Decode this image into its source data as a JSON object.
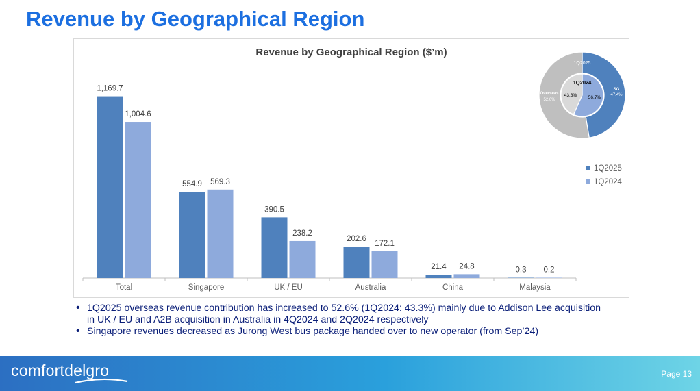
{
  "page": {
    "title": "Revenue by Geographical Region",
    "page_label": "Page 13"
  },
  "brand": {
    "logo_text": "comfortdelgro"
  },
  "bullets": [
    "1Q2025 overseas revenue contribution has increased to 52.6% (1Q2024: 43.3%) mainly due to Addison Lee acquisition in UK / EU and A2B acquisition in Australia in 4Q2024 and 2Q2024 respectively",
    "Singapore revenues decreased as Jurong West bus package handed over to new operator (from Sep’24)"
  ],
  "chart_data": [
    {
      "type": "bar",
      "title": "Revenue by Geographical Region ($’m)",
      "categories": [
        "Total",
        "Singapore",
        "UK / EU",
        "Australia",
        "China",
        "Malaysia"
      ],
      "series": [
        {
          "name": "1Q2025",
          "color": "#4f81bd",
          "values": [
            1169.7,
            554.9,
            390.5,
            202.6,
            21.4,
            0.3
          ],
          "labels": [
            "1,169.7",
            "554.9",
            "390.5",
            "202.6",
            "21.4",
            "0.3"
          ]
        },
        {
          "name": "1Q2024",
          "color": "#8eaadc",
          "values": [
            1004.6,
            569.3,
            238.2,
            172.1,
            24.8,
            0.2
          ],
          "labels": [
            "1,004.6",
            "569.3",
            "238.2",
            "172.1",
            "24.8",
            "0.2"
          ]
        }
      ],
      "ylim": [
        0,
        1300
      ],
      "grid": false,
      "legend": "right"
    },
    {
      "type": "pie",
      "variant": "nested-donut",
      "outer_ring": {
        "label": "1Q2025",
        "slices": [
          {
            "name": "SG",
            "value": 47.4,
            "label": "47.4%",
            "color": "#4f81bd"
          },
          {
            "name": "Overseas",
            "value": 52.6,
            "label": "52.6%",
            "color": "#bfbfbf"
          }
        ]
      },
      "inner_ring": {
        "label": "1Q2024",
        "slices": [
          {
            "name": "SG",
            "value": 56.7,
            "label": "56.7%",
            "color": "#8eaadc"
          },
          {
            "name": "Overseas",
            "value": 43.3,
            "label": "43.3%",
            "color": "#d9d9d9"
          }
        ]
      }
    }
  ]
}
